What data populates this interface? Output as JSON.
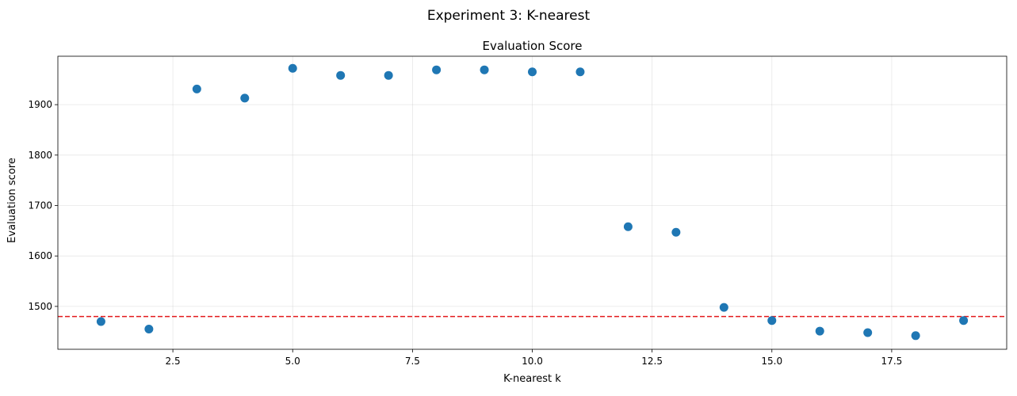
{
  "figure": {
    "suptitle": "Experiment 3: K-nearest"
  },
  "chart_data": {
    "type": "scatter",
    "title": "Evaluation Score",
    "xlabel": "K-nearest k",
    "ylabel": "Evaluation score",
    "xlim": [
      0.1,
      19.9
    ],
    "ylim": [
      1415,
      1996
    ],
    "xticks": [
      2.5,
      5.0,
      7.5,
      10.0,
      12.5,
      15.0,
      17.5
    ],
    "xtick_labels": [
      "2.5",
      "5.0",
      "7.5",
      "10.0",
      "12.5",
      "15.0",
      "17.5"
    ],
    "yticks": [
      1500,
      1600,
      1700,
      1800,
      1900
    ],
    "ytick_labels": [
      "1500",
      "1600",
      "1700",
      "1800",
      "1900"
    ],
    "grid": true,
    "marker_color": "#1f77b4",
    "reference_line": {
      "y": 1480,
      "color": "#e31a1c",
      "style": "dashed"
    },
    "points": [
      {
        "x": 1,
        "y": 1470
      },
      {
        "x": 2,
        "y": 1455
      },
      {
        "x": 3,
        "y": 1931
      },
      {
        "x": 4,
        "y": 1913
      },
      {
        "x": 5,
        "y": 1972
      },
      {
        "x": 6,
        "y": 1958
      },
      {
        "x": 7,
        "y": 1958
      },
      {
        "x": 8,
        "y": 1969
      },
      {
        "x": 9,
        "y": 1969
      },
      {
        "x": 10,
        "y": 1965
      },
      {
        "x": 11,
        "y": 1965
      },
      {
        "x": 12,
        "y": 1658
      },
      {
        "x": 13,
        "y": 1647
      },
      {
        "x": 14,
        "y": 1498
      },
      {
        "x": 15,
        "y": 1472
      },
      {
        "x": 16,
        "y": 1451
      },
      {
        "x": 17,
        "y": 1448
      },
      {
        "x": 18,
        "y": 1442
      },
      {
        "x": 19,
        "y": 1472
      }
    ]
  }
}
